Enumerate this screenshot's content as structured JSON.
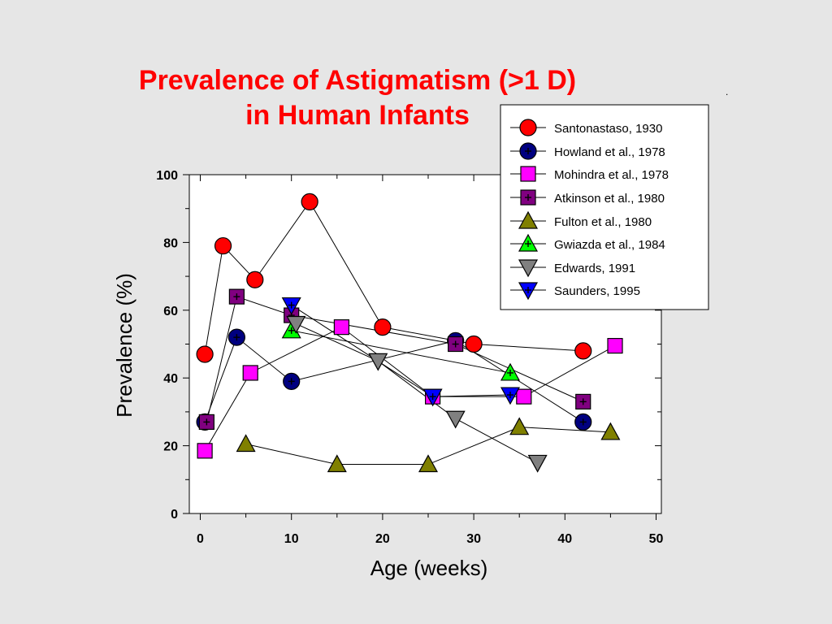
{
  "slide": {
    "title_line1": "Prevalence of Astigmatism (>1 D)",
    "title_line2": "in Human Infants",
    "dot": "."
  },
  "chart_data": {
    "type": "scatter",
    "xlabel": "Age (weeks)",
    "ylabel": "Prevalence (%)",
    "xlim": [
      -1,
      50
    ],
    "ylim": [
      0,
      100
    ],
    "xticks": [
      0,
      10,
      20,
      30,
      40,
      50
    ],
    "yticks": [
      0,
      20,
      40,
      60,
      80,
      100
    ],
    "legend_position": "top-right",
    "grid": false,
    "series": [
      {
        "name": "Santonastaso, 1930",
        "marker": "circle",
        "color": "#ff0000",
        "cross": false,
        "x": [
          0.5,
          2.5,
          6,
          12,
          20,
          30,
          42
        ],
        "y": [
          47,
          79,
          69,
          92,
          55,
          50,
          48
        ]
      },
      {
        "name": "Howland et al., 1978",
        "marker": "circle",
        "color": "#000080",
        "cross": true,
        "x": [
          0.5,
          4,
          10,
          28,
          42
        ],
        "y": [
          27,
          52,
          39,
          51,
          27
        ]
      },
      {
        "name": "Mohindra et al., 1978",
        "marker": "square",
        "color": "#ff00ff",
        "cross": false,
        "x": [
          0.5,
          5.5,
          15.5,
          25.5,
          35.5,
          45.5
        ],
        "y": [
          18.5,
          41.5,
          55,
          34.5,
          34.5,
          49.5
        ]
      },
      {
        "name": "Atkinson et al., 1980",
        "marker": "square",
        "color": "#800080",
        "cross": true,
        "x": [
          0.7,
          4,
          10,
          28,
          42
        ],
        "y": [
          27,
          64,
          58.5,
          50,
          33
        ]
      },
      {
        "name": "Fulton et al., 1980",
        "marker": "triangle-up",
        "color": "#808000",
        "cross": false,
        "x": [
          5,
          15,
          25,
          35,
          45
        ],
        "y": [
          20.5,
          14.5,
          14.5,
          25.5,
          24
        ]
      },
      {
        "name": "Gwiazda et al., 1984",
        "marker": "triangle-up",
        "color": "#00ff00",
        "cross": true,
        "x": [
          10,
          34
        ],
        "y": [
          54,
          41.5
        ]
      },
      {
        "name": "Edwards, 1991",
        "marker": "triangle-down",
        "color": "#808080",
        "cross": false,
        "x": [
          10.5,
          19.5,
          28,
          37
        ],
        "y": [
          56,
          45,
          28,
          15
        ]
      },
      {
        "name": "Saunders, 1995",
        "marker": "triangle-down",
        "color": "#0000ff",
        "cross": true,
        "x": [
          10,
          25.5,
          34
        ],
        "y": [
          61.5,
          34.5,
          35
        ]
      }
    ]
  }
}
